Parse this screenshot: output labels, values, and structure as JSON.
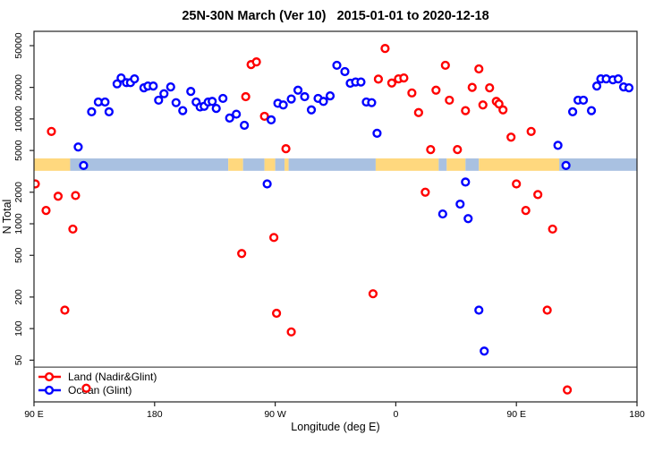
{
  "chart_data": {
    "type": "scatter",
    "title": "25N-30N March (Ver 10)   2015-01-01 to 2020-12-18",
    "xlabel": "Longitude (deg E)",
    "ylabel": "N Total",
    "x_axis": {
      "lim": [
        90,
        540
      ],
      "ticks": [
        {
          "value": 90,
          "label": "90 E"
        },
        {
          "value": 180,
          "label": "180"
        },
        {
          "value": 270,
          "label": "90 W"
        },
        {
          "value": 360,
          "label": "0"
        },
        {
          "value": 450,
          "label": "90 E"
        },
        {
          "value": 540,
          "label": "180"
        }
      ]
    },
    "y_axis": {
      "log": true,
      "lim": [
        20,
        68500
      ],
      "ticks": [
        50,
        100,
        200,
        500,
        1000,
        2000,
        5000,
        10000,
        20000,
        50000
      ]
    },
    "grid": false,
    "legend": {
      "position": "bottom-left",
      "separator_value": 43
    },
    "map_band": {
      "description": "land/ocean strip map for 25N-30N",
      "value_range": [
        3200,
        4200
      ],
      "land_color": "#FFD87E",
      "ocean_color": "#A9C1E1",
      "segments": [
        {
          "from": 90,
          "to": 117,
          "type": "land"
        },
        {
          "from": 117,
          "to": 235,
          "type": "ocean"
        },
        {
          "from": 235,
          "to": 246,
          "type": "land"
        },
        {
          "from": 246,
          "to": 262,
          "type": "ocean"
        },
        {
          "from": 262,
          "to": 270,
          "type": "land"
        },
        {
          "from": 270,
          "to": 277,
          "type": "ocean"
        },
        {
          "from": 277,
          "to": 280,
          "type": "land"
        },
        {
          "from": 280,
          "to": 345,
          "type": "ocean"
        },
        {
          "from": 345,
          "to": 392,
          "type": "land"
        },
        {
          "from": 392,
          "to": 398,
          "type": "ocean"
        },
        {
          "from": 398,
          "to": 412,
          "type": "land"
        },
        {
          "from": 412,
          "to": 422,
          "type": "ocean"
        },
        {
          "from": 422,
          "to": 482,
          "type": "land"
        },
        {
          "from": 482,
          "to": 540,
          "type": "ocean"
        }
      ]
    },
    "series": [
      {
        "name": "Land (Nadir&Glint)",
        "color": "#FF0000",
        "points": [
          [
            91,
            2400
          ],
          [
            99,
            1340
          ],
          [
            103,
            7600
          ],
          [
            108,
            1830
          ],
          [
            113,
            150
          ],
          [
            119,
            890
          ],
          [
            121,
            1860
          ],
          [
            129,
            27
          ],
          [
            245,
            520
          ],
          [
            248,
            16300
          ],
          [
            252,
            33000
          ],
          [
            256,
            35000
          ],
          [
            262,
            10600
          ],
          [
            269,
            740
          ],
          [
            271,
            140
          ],
          [
            278,
            5200
          ],
          [
            282,
            93
          ],
          [
            343,
            215
          ],
          [
            347,
            24000
          ],
          [
            352,
            47000
          ],
          [
            357,
            22000
          ],
          [
            362,
            24100
          ],
          [
            366,
            24600
          ],
          [
            372,
            17700
          ],
          [
            377,
            11500
          ],
          [
            382,
            2000
          ],
          [
            386,
            5100
          ],
          [
            390,
            18800
          ],
          [
            397,
            32500
          ],
          [
            400,
            15100
          ],
          [
            406,
            5100
          ],
          [
            412,
            12000
          ],
          [
            417,
            20000
          ],
          [
            422,
            30000
          ],
          [
            425,
            13600
          ],
          [
            430,
            19800
          ],
          [
            435,
            14700
          ],
          [
            437,
            13900
          ],
          [
            440,
            12200
          ],
          [
            446,
            6700
          ],
          [
            450,
            2400
          ],
          [
            457,
            1340
          ],
          [
            461,
            7600
          ],
          [
            466,
            1900
          ],
          [
            473,
            150
          ],
          [
            477,
            890
          ],
          [
            488,
            26
          ]
        ]
      },
      {
        "name": "Ocean (Glint)",
        "color": "#0000FF",
        "points": [
          [
            123,
            5400
          ],
          [
            127,
            3600
          ],
          [
            133,
            11700
          ],
          [
            138,
            14500
          ],
          [
            143,
            14500
          ],
          [
            146,
            11700
          ],
          [
            152,
            21600
          ],
          [
            155,
            24600
          ],
          [
            159,
            22200
          ],
          [
            162,
            22200
          ],
          [
            165,
            24100
          ],
          [
            172,
            19800
          ],
          [
            175,
            20600
          ],
          [
            179,
            20600
          ],
          [
            183,
            15100
          ],
          [
            187,
            17400
          ],
          [
            192,
            20200
          ],
          [
            196,
            14300
          ],
          [
            201,
            12000
          ],
          [
            207,
            18300
          ],
          [
            211,
            14500
          ],
          [
            214,
            13000
          ],
          [
            217,
            13200
          ],
          [
            220,
            14500
          ],
          [
            223,
            14700
          ],
          [
            226,
            12600
          ],
          [
            231,
            15700
          ],
          [
            236,
            10200
          ],
          [
            241,
            11100
          ],
          [
            247,
            8700
          ],
          [
            264,
            2400
          ],
          [
            267,
            9800
          ],
          [
            272,
            14100
          ],
          [
            276,
            13600
          ],
          [
            282,
            15500
          ],
          [
            287,
            18800
          ],
          [
            292,
            16300
          ],
          [
            297,
            12200
          ],
          [
            302,
            15700
          ],
          [
            306,
            14700
          ],
          [
            311,
            16600
          ],
          [
            316,
            32500
          ],
          [
            322,
            28300
          ],
          [
            326,
            21900
          ],
          [
            330,
            22500
          ],
          [
            334,
            22500
          ],
          [
            338,
            14500
          ],
          [
            342,
            14300
          ],
          [
            346,
            7300
          ],
          [
            395,
            1240
          ],
          [
            408,
            1540
          ],
          [
            412,
            2500
          ],
          [
            414,
            1120
          ],
          [
            422,
            150
          ],
          [
            426,
            61
          ],
          [
            481,
            5600
          ],
          [
            487,
            3600
          ],
          [
            492,
            11700
          ],
          [
            496,
            15100
          ],
          [
            500,
            15100
          ],
          [
            506,
            12000
          ],
          [
            510,
            20600
          ],
          [
            513,
            24100
          ],
          [
            517,
            24100
          ],
          [
            522,
            23600
          ],
          [
            526,
            24100
          ],
          [
            530,
            20200
          ],
          [
            534,
            19800
          ]
        ]
      }
    ]
  }
}
